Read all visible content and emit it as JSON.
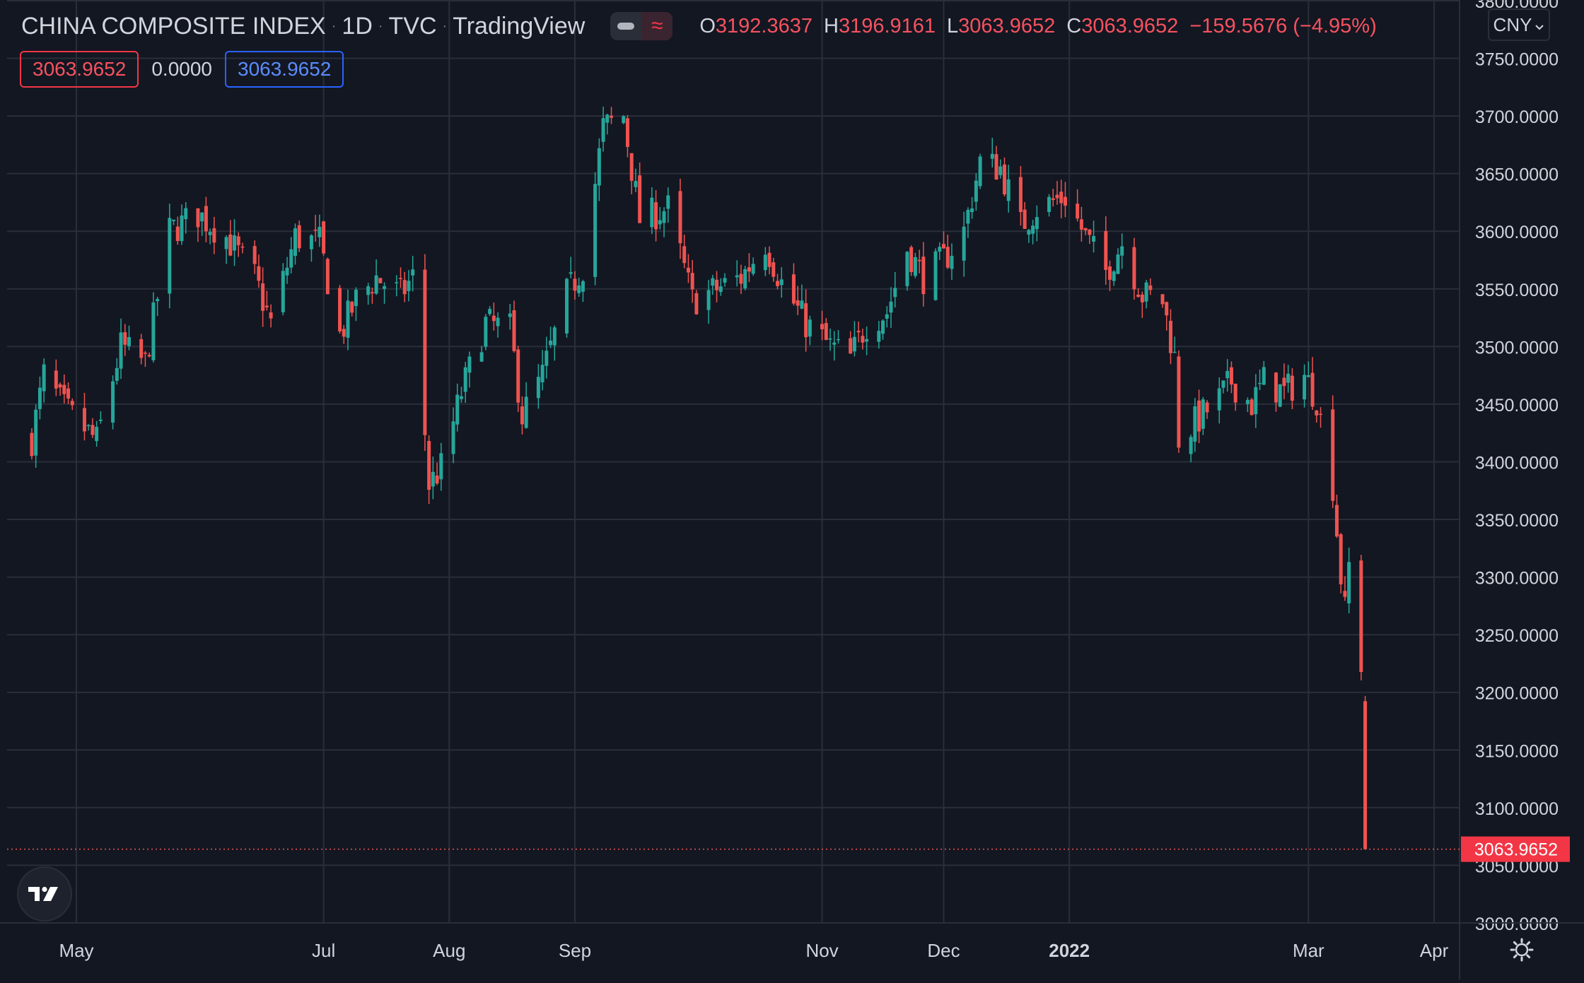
{
  "header": {
    "symbol": "CHINA COMPOSITE INDEX",
    "interval": "1D",
    "exchange": "TVC",
    "source": "TradingView",
    "ohlc": {
      "o_label": "O",
      "o_value": "3192.3637",
      "h_label": "H",
      "h_value": "3196.9161",
      "l_label": "L",
      "l_value": "3063.9652",
      "c_label": "C",
      "c_value": "3063.9652",
      "change": "−159.5676 (−4.95%)"
    },
    "indicator_values": [
      "3063.9652",
      "0.0000",
      "3063.9652"
    ],
    "currency": "CNY"
  },
  "colors": {
    "up": "#26a69a",
    "down": "#ef5350",
    "grid": "#2a2e39",
    "background": "#131722",
    "text": "#d1d4dc"
  },
  "icons": [
    "eye-toggle-icon",
    "wave-icon",
    "chevron-down-icon",
    "tradingview-logo-icon",
    "settings-gear-icon"
  ],
  "chart_data": {
    "type": "candlestick",
    "title": "CHINA COMPOSITE INDEX",
    "interval": "1D",
    "currency": "CNY",
    "y_range": [
      3000,
      3800
    ],
    "y_ticks": [
      "3000.0000",
      "3050.0000",
      "3100.0000",
      "3150.0000",
      "3200.0000",
      "3250.0000",
      "3300.0000",
      "3350.0000",
      "3400.0000",
      "3450.0000",
      "3500.0000",
      "3550.0000",
      "3600.0000",
      "3650.0000",
      "3700.0000",
      "3750.0000",
      "3800.0000"
    ],
    "x_ticks": [
      "May",
      "Jul",
      "Aug",
      "Sep",
      "Nov",
      "Dec",
      "2022",
      "Mar",
      "Apr"
    ],
    "last_price": "3063.9652",
    "last_bar": {
      "open": 3192.3637,
      "high": 3196.9161,
      "low": 3063.9652,
      "close": 3063.9652
    },
    "grid": true,
    "close_path": [
      [
        "2021-04-20",
        3420
      ],
      [
        "2021-04-23",
        3475
      ],
      [
        "2021-04-28",
        3446
      ],
      [
        "2021-05-06",
        3418
      ],
      [
        "2021-05-12",
        3500
      ],
      [
        "2021-05-18",
        3485
      ],
      [
        "2021-05-24",
        3600
      ],
      [
        "2021-05-31",
        3615
      ],
      [
        "2021-06-07",
        3595
      ],
      [
        "2021-06-14",
        3560
      ],
      [
        "2021-06-18",
        3520
      ],
      [
        "2021-06-24",
        3595
      ],
      [
        "2021-06-30",
        3590
      ],
      [
        "2021-07-05",
        3510
      ],
      [
        "2021-07-09",
        3540
      ],
      [
        "2021-07-14",
        3560
      ],
      [
        "2021-07-20",
        3545
      ],
      [
        "2021-07-23",
        3560
      ],
      [
        "2021-07-27",
        3380
      ],
      [
        "2021-07-30",
        3395
      ],
      [
        "2021-08-04",
        3460
      ],
      [
        "2021-08-10",
        3520
      ],
      [
        "2021-08-16",
        3515
      ],
      [
        "2021-08-19",
        3440
      ],
      [
        "2021-08-24",
        3475
      ],
      [
        "2021-08-30",
        3545
      ],
      [
        "2021-09-03",
        3570
      ],
      [
        "2021-09-08",
        3690
      ],
      [
        "2021-09-13",
        3700
      ],
      [
        "2021-09-17",
        3610
      ],
      [
        "2021-09-24",
        3620
      ],
      [
        "2021-09-30",
        3540
      ],
      [
        "2021-10-12",
        3560
      ],
      [
        "2021-10-18",
        3590
      ],
      [
        "2021-10-22",
        3555
      ],
      [
        "2021-10-28",
        3520
      ],
      [
        "2021-11-03",
        3500
      ],
      [
        "2021-11-08",
        3490
      ],
      [
        "2021-11-12",
        3520
      ],
      [
        "2021-11-17",
        3530
      ],
      [
        "2021-11-22",
        3585
      ],
      [
        "2021-11-26",
        3560
      ],
      [
        "2021-12-01",
        3575
      ],
      [
        "2021-12-06",
        3600
      ],
      [
        "2021-12-10",
        3660
      ],
      [
        "2021-12-15",
        3655
      ],
      [
        "2021-12-20",
        3605
      ],
      [
        "2021-12-24",
        3620
      ],
      [
        "2021-12-31",
        3630
      ],
      [
        "2022-01-05",
        3595
      ],
      [
        "2022-01-10",
        3565
      ],
      [
        "2022-01-14",
        3590
      ],
      [
        "2022-01-19",
        3545
      ],
      [
        "2022-01-24",
        3540
      ],
      [
        "2022-01-27",
        3490
      ],
      [
        "2022-01-28",
        3420
      ],
      [
        "2022-02-07",
        3455
      ],
      [
        "2022-02-10",
        3470
      ],
      [
        "2022-02-15",
        3450
      ],
      [
        "2022-02-18",
        3470
      ],
      [
        "2022-02-23",
        3460
      ],
      [
        "2022-02-28",
        3475
      ],
      [
        "2022-03-03",
        3455
      ],
      [
        "2022-03-07",
        3380
      ],
      [
        "2022-03-09",
        3300
      ],
      [
        "2022-03-10",
        3270
      ],
      [
        "2022-03-11",
        3310
      ],
      [
        "2022-03-14",
        3225
      ],
      [
        "2022-03-15",
        3063.9652
      ]
    ]
  }
}
